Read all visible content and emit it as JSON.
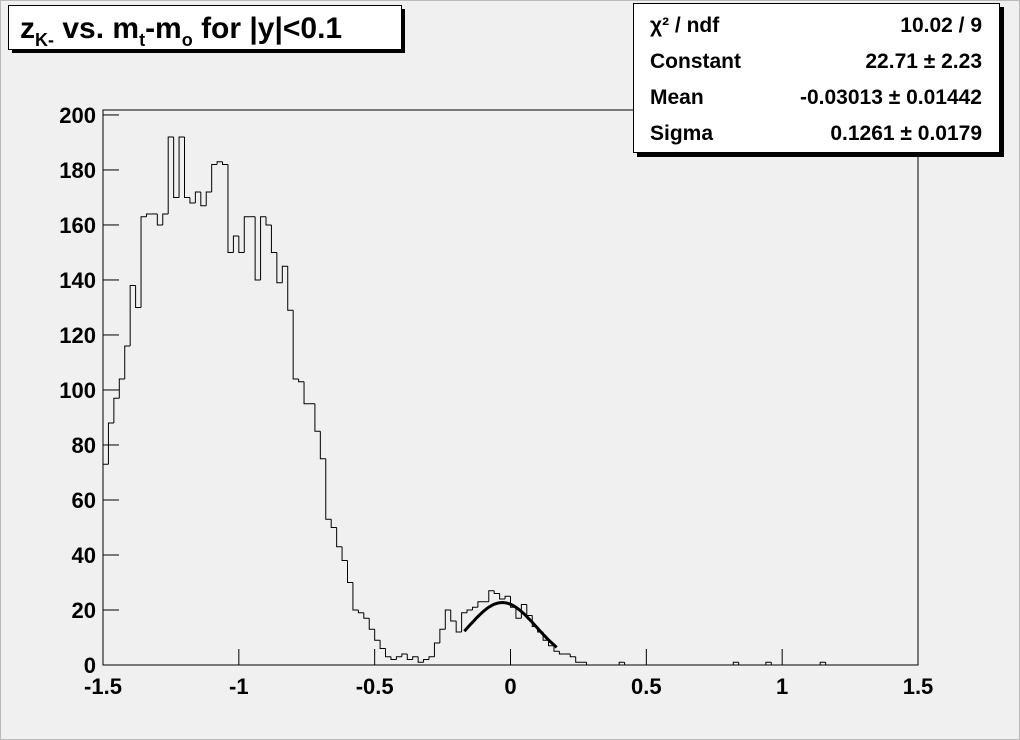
{
  "chart_data": {
    "type": "histogram",
    "title_parts": [
      {
        "text": "z",
        "sub": false
      },
      {
        "text": "K-",
        "sub": true
      },
      {
        "text": " vs. m",
        "sub": false
      },
      {
        "text": "t",
        "sub": true
      },
      {
        "text": "-m",
        "sub": false
      },
      {
        "text": "o",
        "sub": true
      },
      {
        "text": " for |y|<0.1",
        "sub": false
      }
    ],
    "stats": [
      {
        "name": "χ² / ndf",
        "value": "10.02 / 9"
      },
      {
        "name": "Constant",
        "value": "22.71 ± 2.23"
      },
      {
        "name": "Mean",
        "value": "-0.03013 ± 0.01442"
      },
      {
        "name": "Sigma",
        "value": "0.1261 ± 0.0179"
      }
    ],
    "fit": {
      "constant": 22.71,
      "mean": -0.03013,
      "sigma": 0.1261,
      "xlim": [
        -0.17,
        0.17
      ]
    },
    "bins": [
      -1.5,
      -1.48,
      -1.46,
      -1.44,
      -1.42,
      -1.4,
      -1.38,
      -1.36,
      -1.34,
      -1.32,
      -1.3,
      -1.28,
      -1.26,
      -1.24,
      -1.22,
      -1.2,
      -1.18,
      -1.16,
      -1.14,
      -1.12,
      -1.1,
      -1.08,
      -1.06,
      -1.04,
      -1.02,
      -1,
      -0.98,
      -0.96,
      -0.94,
      -0.92,
      -0.9,
      -0.88,
      -0.86,
      -0.84,
      -0.82,
      -0.8,
      -0.78,
      -0.76,
      -0.74,
      -0.72,
      -0.7,
      -0.68,
      -0.66,
      -0.64,
      -0.62,
      -0.6,
      -0.58,
      -0.56,
      -0.54,
      -0.52,
      -0.5,
      -0.48,
      -0.46,
      -0.44,
      -0.42,
      -0.4,
      -0.38,
      -0.36,
      -0.34,
      -0.32,
      -0.3,
      -0.28,
      -0.26,
      -0.24,
      -0.22,
      -0.2,
      -0.18,
      -0.16,
      -0.14,
      -0.12,
      -0.1,
      -0.08,
      -0.06,
      -0.04,
      -0.02,
      0,
      0.02,
      0.04,
      0.06,
      0.08,
      0.1,
      0.12,
      0.14,
      0.16,
      0.18,
      0.2,
      0.22,
      0.24,
      0.26,
      0.28,
      0.3,
      0.32,
      0.34,
      0.36,
      0.38,
      0.4,
      0.42,
      0.44,
      0.46,
      0.48,
      0.5,
      0.52,
      0.54,
      0.56,
      0.58,
      0.6,
      0.62,
      0.64,
      0.66,
      0.68,
      0.7,
      0.72,
      0.74,
      0.76,
      0.78,
      0.8,
      0.82,
      0.84,
      0.86,
      0.88,
      0.9,
      0.92,
      0.94,
      0.96,
      0.98,
      1,
      1.02,
      1.04,
      1.06,
      1.08,
      1.1,
      1.12,
      1.14,
      1.16,
      1.18,
      1.2,
      1.22,
      1.24,
      1.26,
      1.28,
      1.3,
      1.32,
      1.34,
      1.36,
      1.38,
      1.4,
      1.42,
      1.44,
      1.46,
      1.48,
      1.5
    ],
    "values": [
      73,
      88,
      97,
      104,
      116,
      138,
      130,
      163,
      164,
      164,
      160,
      164,
      192,
      170,
      192,
      170,
      168,
      172,
      167,
      172,
      182,
      183,
      182,
      150,
      156,
      150,
      163,
      163,
      140,
      163,
      160,
      150,
      139,
      145,
      129,
      104,
      103,
      95,
      95,
      85,
      75,
      53,
      50,
      43,
      38,
      30,
      20,
      19,
      17,
      13,
      9,
      6,
      3,
      2,
      3,
      4,
      2,
      3,
      1,
      2,
      3,
      8,
      13,
      20,
      16,
      12,
      19,
      20,
      21,
      23,
      23,
      27,
      26,
      24,
      25,
      21,
      17,
      22,
      18,
      14,
      12,
      9,
      7,
      5,
      4,
      4,
      3,
      1,
      1,
      0,
      0,
      0,
      0,
      0,
      0,
      1,
      0,
      0,
      0,
      0,
      0,
      0,
      0,
      0,
      0,
      0,
      0,
      0,
      0,
      0,
      0,
      0,
      0,
      0,
      0,
      0,
      1,
      0,
      0,
      0,
      0,
      0,
      1,
      0,
      0,
      0,
      0,
      0,
      0,
      0,
      0,
      0,
      1,
      0,
      0,
      0,
      0,
      0,
      0,
      0,
      0,
      0,
      0,
      0,
      0,
      0,
      0,
      0,
      0,
      0
    ],
    "color": "#000000",
    "xlim": [
      -1.5,
      1.5
    ],
    "xticks": [
      -1.5,
      -1,
      -0.5,
      0,
      0.5,
      1,
      1.5
    ],
    "ylim": [
      0,
      201.8
    ],
    "yticks": [
      0,
      20,
      40,
      60,
      80,
      100,
      120,
      140,
      160,
      180,
      200
    ]
  }
}
